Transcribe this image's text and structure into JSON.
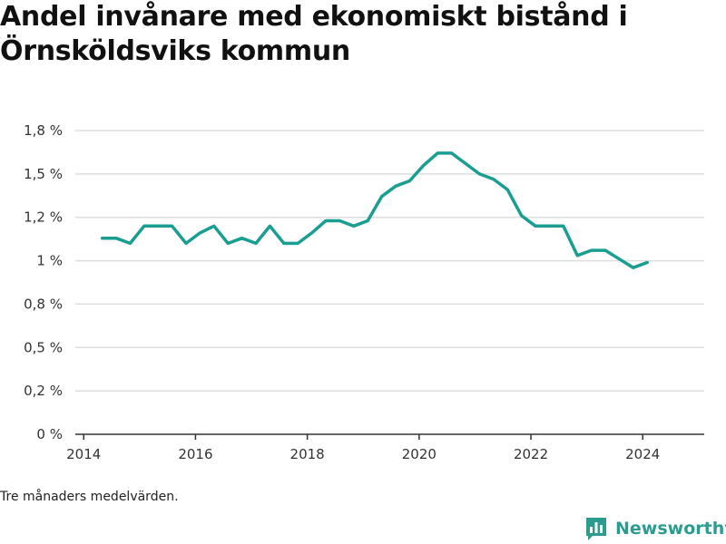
{
  "title": "Andel invånare med ekonomiskt bistånd i Örnsköldsviks kommun",
  "note": "Tre månaders medelvärden.",
  "brand": {
    "name": "Newsworthy",
    "color": "#2b9c8f",
    "icon": "bar-chart-logo-icon"
  },
  "colors": {
    "line": "#1a9e91",
    "grid": "#dddddd",
    "axis": "#333333"
  },
  "chart_data": {
    "type": "line",
    "title": "Andel invånare med ekonomiskt bistånd i Örnsköldsviks kommun",
    "xlabel": "",
    "ylabel": "",
    "x_ticks": [
      2014,
      2016,
      2018,
      2020,
      2022,
      2024
    ],
    "y_ticks": [
      {
        "value": 0.0,
        "label": "0 %"
      },
      {
        "value": 0.25,
        "label": "0,2 %"
      },
      {
        "value": 0.5,
        "label": "0,5 %"
      },
      {
        "value": 0.75,
        "label": "0,8 %"
      },
      {
        "value": 1.0,
        "label": "1 %"
      },
      {
        "value": 1.25,
        "label": "1,2 %"
      },
      {
        "value": 1.5,
        "label": "1,5 %"
      },
      {
        "value": 1.75,
        "label": "1,8 %"
      }
    ],
    "xlim": [
      2013.85,
      2025.1
    ],
    "ylim": [
      0,
      1.75
    ],
    "grid": true,
    "series": [
      {
        "x": [
          2014.33,
          2014.58,
          2014.83,
          2015.08,
          2015.33,
          2015.58,
          2015.83,
          2016.08,
          2016.33,
          2016.58,
          2016.83,
          2017.08,
          2017.33,
          2017.58,
          2017.83,
          2018.08,
          2018.33,
          2018.58,
          2018.83,
          2019.08,
          2019.33,
          2019.58,
          2019.83,
          2020.08,
          2020.33,
          2020.58,
          2020.83,
          2021.08,
          2021.33,
          2021.58,
          2021.83,
          2022.08,
          2022.33,
          2022.58,
          2022.83,
          2023.08,
          2023.33,
          2023.58,
          2023.83,
          2024.08
        ],
        "values": [
          1.13,
          1.13,
          1.1,
          1.2,
          1.2,
          1.2,
          1.1,
          1.16,
          1.2,
          1.1,
          1.13,
          1.1,
          1.2,
          1.1,
          1.1,
          1.16,
          1.23,
          1.23,
          1.2,
          1.23,
          1.37,
          1.43,
          1.46,
          1.55,
          1.62,
          1.62,
          1.56,
          1.5,
          1.47,
          1.41,
          1.26,
          1.2,
          1.2,
          1.2,
          1.03,
          1.06,
          1.06,
          1.01,
          0.96,
          0.99
        ]
      }
    ]
  }
}
